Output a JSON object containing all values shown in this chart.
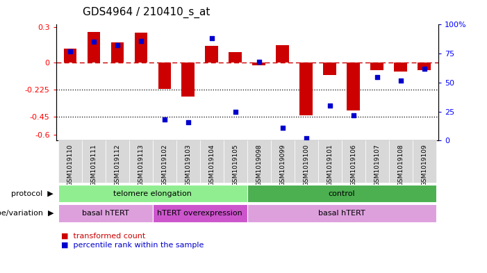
{
  "title": "GDS4964 / 210410_s_at",
  "samples": [
    "GSM1019110",
    "GSM1019111",
    "GSM1019112",
    "GSM1019113",
    "GSM1019102",
    "GSM1019103",
    "GSM1019104",
    "GSM1019105",
    "GSM1019098",
    "GSM1019099",
    "GSM1019100",
    "GSM1019101",
    "GSM1019106",
    "GSM1019107",
    "GSM1019108",
    "GSM1019109"
  ],
  "transformed_count": [
    0.12,
    0.26,
    0.17,
    0.25,
    -0.22,
    -0.28,
    0.14,
    0.09,
    -0.02,
    0.15,
    -0.44,
    -0.1,
    -0.4,
    -0.06,
    -0.07,
    -0.06
  ],
  "percentile_rank": [
    77,
    85,
    82,
    86,
    18,
    16,
    88,
    25,
    68,
    11,
    2,
    30,
    22,
    55,
    52,
    62
  ],
  "protocol_groups": [
    {
      "label": "telomere elongation",
      "start": 0,
      "end": 8,
      "color": "#90ee90"
    },
    {
      "label": "control",
      "start": 8,
      "end": 16,
      "color": "#4caf50"
    }
  ],
  "genotype_groups": [
    {
      "label": "basal hTERT",
      "start": 0,
      "end": 4,
      "color": "#dda0dd"
    },
    {
      "label": "hTERT overexpression",
      "start": 4,
      "end": 8,
      "color": "#cc55cc"
    },
    {
      "label": "basal hTERT",
      "start": 8,
      "end": 16,
      "color": "#dda0dd"
    }
  ],
  "bar_color": "#cc0000",
  "dot_color": "#0000cc",
  "dotted_lines": [
    -0.225,
    -0.45
  ],
  "ylim": [
    -0.65,
    0.32
  ],
  "y2lim": [
    0,
    100
  ],
  "y2_ticks": [
    0,
    25,
    50,
    75,
    100
  ],
  "y2_labels": [
    "0",
    "25",
    "50",
    "75",
    "100%"
  ],
  "y_ticks": [
    0.3,
    0.0,
    -0.225,
    -0.45,
    -0.6
  ],
  "y_tick_labels": [
    "0.3",
    "0",
    "-0.225",
    "-0.45",
    "-0.6"
  ],
  "bar_width": 0.55
}
